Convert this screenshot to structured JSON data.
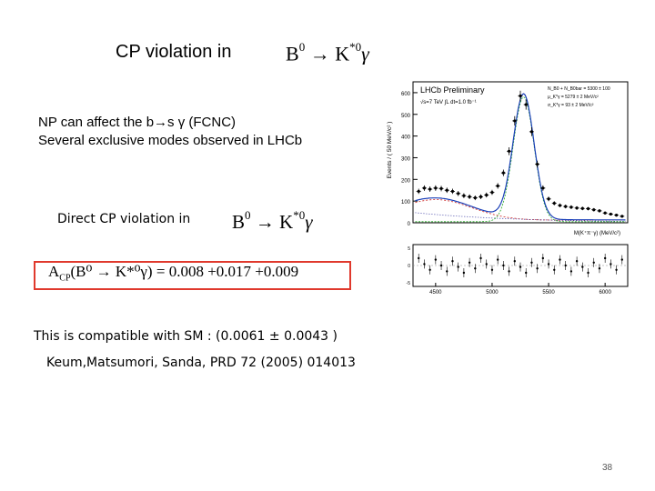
{
  "title": {
    "text": "CP  violation in",
    "formula_main": "B",
    "formula_sup1": "0",
    "formula_arrow": " → K",
    "formula_sup2": "*0",
    "formula_gamma": "γ"
  },
  "np_line1": "NP can affect the  b→s γ    (FCNC)",
  "np_line2": "Several  exclusive modes observed in LHCb",
  "direct": {
    "text": "Direct CP violation   in",
    "formula_main": "B",
    "formula_sup1": "0",
    "formula_arrow": " → K",
    "formula_sup2": "*0",
    "formula_gamma": "γ"
  },
  "acp": {
    "lhs": "A",
    "sub": "CP",
    "arg": "(B⁰ → K*⁰γ)",
    "rhs": " = 0.008 +0.017 +0.009"
  },
  "sm_text": "This is compatible with SM :  (0.0061 ±  0.0043 )",
  "reference": "Keum,Matsumori, Sanda, PRD 72 (2005) 014013",
  "page_number": "38",
  "colors": {
    "acp_box_border": "#e0392d",
    "fit_total": "#1a3fb8",
    "signal": "#22aa22",
    "background": "#cc2222"
  },
  "chart_data": {
    "type": "scatter",
    "title": "LHCb Preliminary",
    "annotations": [
      "√s=7 TeV  ∫L dt=1.0 fb⁻¹"
    ],
    "legend_text": [
      "N_B0 + N_B0bar = 5300 ± 100",
      "μ_K*γ = 5279 ± 2 MeV/c²",
      "σ_K*γ = 93 ± 2 MeV/c²"
    ],
    "ylabel": "Events / ( 50 MeV/c² )",
    "xlabel": "M(K⁺π⁻γ) (MeV/c²)",
    "y_ticks": [
      "0",
      "100",
      "200",
      "300",
      "400",
      "500",
      "600"
    ],
    "x_ticks": [
      "4500",
      "5000",
      "5500",
      "6000"
    ],
    "xlim": [
      4300,
      6200
    ],
    "ylim": [
      0,
      650
    ],
    "x": [
      4350,
      4400,
      4450,
      4500,
      4550,
      4600,
      4650,
      4700,
      4750,
      4800,
      4850,
      4900,
      4950,
      5000,
      5050,
      5100,
      5150,
      5200,
      5250,
      5300,
      5350,
      5400,
      5450,
      5500,
      5550,
      5600,
      5650,
      5700,
      5750,
      5800,
      5850,
      5900,
      5950,
      6000,
      6050,
      6100,
      6150
    ],
    "y": [
      145,
      160,
      155,
      160,
      158,
      150,
      145,
      135,
      125,
      120,
      115,
      120,
      128,
      140,
      170,
      230,
      330,
      470,
      585,
      545,
      420,
      270,
      160,
      110,
      90,
      80,
      75,
      72,
      68,
      66,
      65,
      60,
      55,
      45,
      40,
      35,
      30
    ]
  }
}
